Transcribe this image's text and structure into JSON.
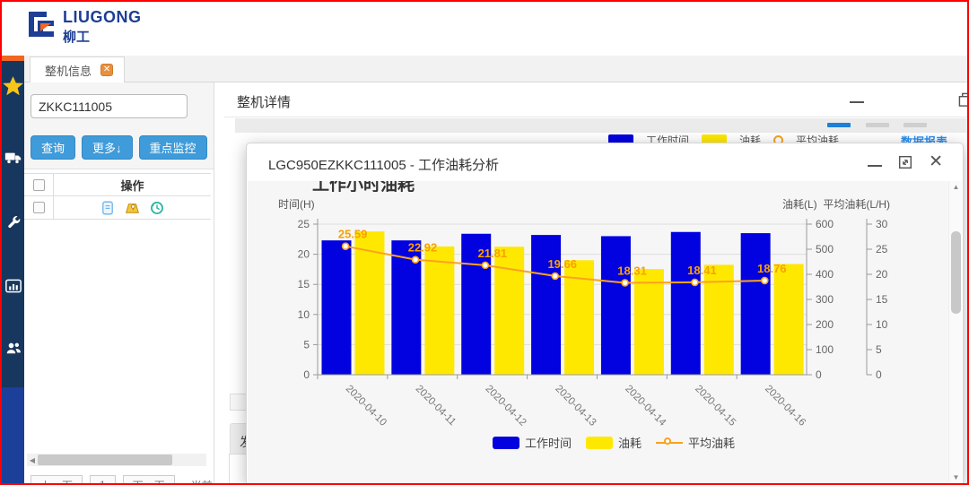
{
  "brand": {
    "name": "LIUGONG",
    "name_cn": "柳工"
  },
  "sidebar": {
    "items": [
      {
        "label": "favorites",
        "icon": "star-icon"
      },
      {
        "label": "vehicles",
        "icon": "truck-icon"
      },
      {
        "label": "maintenance",
        "icon": "wrench-icon"
      },
      {
        "label": "statistics",
        "icon": "bar-chart-icon"
      },
      {
        "label": "customers",
        "icon": "users-icon"
      }
    ]
  },
  "tabs": [
    {
      "label": "整机信息"
    }
  ],
  "left_panel": {
    "search_value": "ZKKC111005",
    "buttons": {
      "query": "查询",
      "more": "更多↓",
      "monitor": "重点监控"
    },
    "table": {
      "op_header": "操作"
    },
    "pagination": {
      "prev": "上一页",
      "page": "1",
      "next": "下一页",
      "current": "当前"
    }
  },
  "detail_panel": {
    "title": "整机详情",
    "report_link": "数据报表",
    "bg_legend": {
      "work_time": "工作时间",
      "fuel": "油耗",
      "avg_fuel": "平均油耗"
    },
    "section_partial": "发"
  },
  "modal": {
    "title": "LGC950EZKKC111005 - 工作油耗分析"
  },
  "chart_data": {
    "type": "bar+line",
    "title": "工作小时油耗",
    "categories": [
      "2020-04-10",
      "2020-04-11",
      "2020-04-12",
      "2020-04-13",
      "2020-04-14",
      "2020-04-15",
      "2020-04-16"
    ],
    "series": [
      {
        "name": "工作时间",
        "type": "bar",
        "axis": "left",
        "color": "#0202e0",
        "values": [
          22.3,
          22.3,
          23.4,
          23.2,
          23.0,
          23.7,
          23.5
        ]
      },
      {
        "name": "油耗",
        "type": "bar",
        "axis": "right1",
        "color": "#ffe800",
        "values": [
          571,
          511,
          510,
          456,
          421,
          438,
          441
        ]
      },
      {
        "name": "平均油耗",
        "type": "line",
        "axis": "right2",
        "color": "#fba21d",
        "values": [
          25.59,
          22.92,
          21.81,
          19.66,
          18.31,
          18.41,
          18.76
        ]
      }
    ],
    "axes": {
      "left": {
        "label": "时间(H)",
        "min": 0,
        "max": 25,
        "step": 5
      },
      "right1": {
        "label": "油耗(L)",
        "min": 0,
        "max": 600,
        "step": 100
      },
      "right2": {
        "label": "平均油耗(L/H)",
        "min": 0,
        "max": 30,
        "step": 5
      }
    },
    "legend": [
      "工作时间",
      "油耗",
      "平均油耗"
    ],
    "legend_position": "bottom",
    "grid": true,
    "colors": {
      "grid": "#dcdcdc",
      "axis": "#999999",
      "tick_text": "#666666",
      "label_text": "#f9a000",
      "plot_bg": "#f6f6f6"
    }
  }
}
